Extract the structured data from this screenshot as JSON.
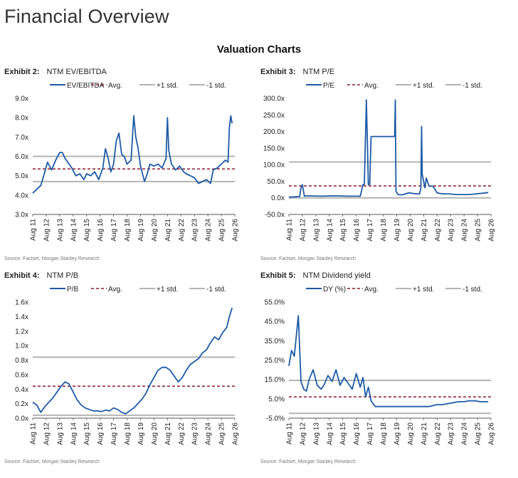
{
  "page": {
    "title": "Financial Overview",
    "section_title": "Valuation Charts"
  },
  "colors": {
    "series": "#1f5aa6",
    "avg": "#8b1a2b",
    "std": "#b4b4b4",
    "axis": "#555555"
  },
  "chart_data": [
    {
      "type": "line",
      "exhibit_label": "Exhibit 2:",
      "exhibit_title": "NTM EV/EBITDA",
      "source": "Source: Factset, Morgan Stanley Research",
      "legend": [
        "EV/EBITDA",
        "Avg.",
        "+1 std.",
        "-1 std."
      ],
      "xlabels": [
        "Aug 11",
        "Aug 12",
        "Aug 13",
        "Aug 14",
        "Aug 15",
        "Aug 16",
        "Aug 17",
        "Aug 18",
        "Aug 19",
        "Aug 20",
        "Aug 21",
        "Aug 22",
        "Aug 23",
        "Aug 24",
        "Aug 25",
        "Aug 26"
      ],
      "ylabels": [
        "9.0x",
        "8.0x",
        "7.0x",
        "6.0x",
        "5.0x",
        "4.0x",
        "3.0x"
      ],
      "ylim": [
        3,
        9
      ],
      "xlim": [
        2011.6,
        2026.6
      ],
      "avg": 5.35,
      "plus1": 6.0,
      "minus1": 4.7,
      "series": [
        {
          "name": "EV/EBITDA",
          "x": [
            2011.6,
            2011.9,
            2012.2,
            2012.5,
            2012.7,
            2013.0,
            2013.3,
            2013.6,
            2013.8,
            2014.0,
            2014.3,
            2014.5,
            2014.8,
            2015.1,
            2015.4,
            2015.6,
            2015.9,
            2016.2,
            2016.5,
            2016.8,
            2017.0,
            2017.2,
            2017.4,
            2017.6,
            2017.8,
            2018.0,
            2018.2,
            2018.4,
            2018.6,
            2018.9,
            2019.1,
            2019.25,
            2019.4,
            2019.6,
            2019.9,
            2020.1,
            2020.3,
            2020.6,
            2020.9,
            2021.2,
            2021.5,
            2021.6,
            2021.7,
            2021.9,
            2022.2,
            2022.5,
            2022.8,
            2023.0,
            2023.3,
            2023.6,
            2023.9,
            2024.2,
            2024.5,
            2024.8,
            2025.0,
            2025.3,
            2025.6,
            2025.9,
            2026.1,
            2026.2,
            2026.3,
            2026.4
          ],
          "y": [
            4.1,
            4.3,
            4.5,
            5.2,
            5.7,
            5.3,
            5.8,
            6.2,
            6.2,
            5.9,
            5.6,
            5.4,
            5.0,
            5.1,
            4.8,
            5.1,
            5.0,
            5.2,
            4.8,
            5.4,
            6.4,
            5.9,
            5.2,
            5.6,
            6.8,
            7.2,
            6.1,
            6.0,
            5.6,
            5.8,
            8.1,
            7.0,
            6.5,
            5.5,
            4.7,
            5.1,
            5.6,
            5.5,
            5.6,
            5.4,
            5.9,
            8.0,
            6.3,
            5.6,
            5.3,
            5.5,
            5.2,
            5.1,
            5.0,
            4.9,
            4.6,
            4.7,
            4.8,
            4.6,
            5.3,
            5.4,
            5.6,
            5.8,
            5.7,
            7.5,
            8.1,
            7.7
          ]
        }
      ]
    },
    {
      "type": "line",
      "exhibit_label": "Exhibit 3:",
      "exhibit_title": "NTM P/E",
      "source": "Source: Factset, Morgan Stanley Research",
      "legend": [
        "P/E",
        "Avg.",
        "+1 std.",
        "-1 std."
      ],
      "xlabels": [
        "Aug 11",
        "Aug 12",
        "Aug 13",
        "Aug 14",
        "Aug 15",
        "Aug 16",
        "Aug 17",
        "Aug 18",
        "Aug 19",
        "Aug 20",
        "Aug 21",
        "Aug 22",
        "Aug 23",
        "Aug 24",
        "Aug 25",
        "Aug 26"
      ],
      "ylabels": [
        "300.0x",
        "250.0x",
        "200.0x",
        "150.0x",
        "100.0x",
        "50.0x",
        "0.0x",
        "-50.0x"
      ],
      "ylim": [
        -50,
        300
      ],
      "xlim": [
        2011.6,
        2026.6
      ],
      "avg": 36,
      "plus1": 108,
      "minus1": 0,
      "series": [
        {
          "name": "P/E",
          "x": [
            2011.6,
            2012.0,
            2012.4,
            2012.5,
            2012.6,
            2012.75,
            2013.0,
            2014.0,
            2015.0,
            2016.0,
            2016.9,
            2017.1,
            2017.2,
            2017.35,
            2017.5,
            2017.6,
            2017.7,
            2017.9,
            2018.5,
            2019.0,
            2019.45,
            2019.5,
            2019.55,
            2019.7,
            2020.0,
            2020.5,
            2021.0,
            2021.3,
            2021.4,
            2021.45,
            2021.5,
            2021.7,
            2021.8,
            2022.0,
            2022.3,
            2022.6,
            2023.0,
            2023.5,
            2024.0,
            2024.5,
            2025.0,
            2025.5,
            2026.0,
            2026.4
          ],
          "y": [
            2,
            3,
            4,
            30,
            40,
            5,
            6,
            5,
            6,
            5,
            5,
            40,
            40,
            295,
            40,
            40,
            185,
            185,
            185,
            185,
            185,
            295,
            20,
            10,
            9,
            15,
            12,
            12,
            30,
            215,
            70,
            30,
            60,
            35,
            35,
            15,
            12,
            12,
            10,
            10,
            10,
            12,
            14,
            16
          ]
        }
      ]
    },
    {
      "type": "line",
      "exhibit_label": "Exhibit 4:",
      "exhibit_title": "NTM P/B",
      "source": "Source: Factset, Morgan Stanley Research",
      "legend": [
        "P/B",
        "Avg.",
        "+1 std.",
        "-1 std."
      ],
      "xlabels": [
        "Aug 11",
        "Aug 12",
        "Aug 13",
        "Aug 14",
        "Aug 15",
        "Aug 16",
        "Aug 17",
        "Aug 18",
        "Aug 19",
        "Aug 20",
        "Aug 21",
        "Aug 22",
        "Aug 23",
        "Aug 24",
        "Aug 25",
        "Aug 26"
      ],
      "ylabels": [
        "1.6x",
        "1.4x",
        "1.2x",
        "1.0x",
        "0.8x",
        "0.6x",
        "0.4x",
        "0.2x",
        "0.0x"
      ],
      "ylim": [
        0,
        1.6
      ],
      "xlim": [
        2011.6,
        2026.6
      ],
      "avg": 0.44,
      "plus1": 0.84,
      "minus1": 0.04,
      "series": [
        {
          "name": "P/B",
          "x": [
            2011.6,
            2011.9,
            2012.2,
            2012.5,
            2012.8,
            2013.1,
            2013.4,
            2013.7,
            2014.0,
            2014.3,
            2014.6,
            2014.9,
            2015.2,
            2015.5,
            2015.8,
            2016.1,
            2016.4,
            2016.7,
            2017.0,
            2017.3,
            2017.6,
            2017.9,
            2018.2,
            2018.5,
            2018.8,
            2019.1,
            2019.4,
            2019.7,
            2020.0,
            2020.3,
            2020.6,
            2020.9,
            2021.2,
            2021.5,
            2021.8,
            2022.1,
            2022.4,
            2022.7,
            2023.0,
            2023.3,
            2023.6,
            2023.9,
            2024.2,
            2024.5,
            2024.8,
            2025.1,
            2025.4,
            2025.7,
            2026.0,
            2026.2,
            2026.4
          ],
          "y": [
            0.22,
            0.18,
            0.08,
            0.16,
            0.22,
            0.28,
            0.36,
            0.44,
            0.5,
            0.47,
            0.36,
            0.25,
            0.18,
            0.14,
            0.12,
            0.1,
            0.1,
            0.09,
            0.11,
            0.1,
            0.14,
            0.12,
            0.08,
            0.06,
            0.1,
            0.14,
            0.2,
            0.26,
            0.34,
            0.46,
            0.56,
            0.66,
            0.7,
            0.7,
            0.66,
            0.58,
            0.5,
            0.56,
            0.66,
            0.74,
            0.78,
            0.82,
            0.9,
            0.94,
            1.04,
            1.12,
            1.08,
            1.18,
            1.25,
            1.4,
            1.52
          ]
        }
      ]
    },
    {
      "type": "line",
      "exhibit_label": "Exhibit 5:",
      "exhibit_title": "NTM Dividend yield",
      "source": "Source: Factset, Morgan Stanley Research",
      "legend": [
        "DY (%)",
        "Avg.",
        "+1 std.",
        "-1 std."
      ],
      "xlabels": [
        "Aug 11",
        "Aug 12",
        "Aug 13",
        "Aug 14",
        "Aug 15",
        "Aug 16",
        "Aug 17",
        "Aug 18",
        "Aug 19",
        "Aug 20",
        "Aug 21",
        "Aug 22",
        "Aug 23",
        "Aug 24",
        "Aug 25",
        "Aug 26"
      ],
      "ylabels": [
        "55.0%",
        "45.0%",
        "35.0%",
        "25.0%",
        "15.0%",
        "5.0%",
        "-5.0%"
      ],
      "ylim": [
        -5,
        55
      ],
      "xlim": [
        2011.6,
        2026.6
      ],
      "avg": 6.0,
      "plus1": 14.5,
      "minus1": -2.5,
      "series": [
        {
          "name": "DY (%)",
          "x": [
            2011.6,
            2011.8,
            2012.0,
            2012.3,
            2012.5,
            2012.7,
            2012.9,
            2013.1,
            2013.4,
            2013.7,
            2014.0,
            2014.2,
            2014.5,
            2014.8,
            2015.1,
            2015.4,
            2015.7,
            2016.0,
            2016.3,
            2016.6,
            2016.9,
            2017.1,
            2017.3,
            2017.5,
            2017.7,
            2018.0,
            2019.0,
            2020.0,
            2021.0,
            2021.5,
            2022.0,
            2022.3,
            2022.6,
            2023.0,
            2023.4,
            2023.8,
            2024.2,
            2024.6,
            2025.0,
            2025.4,
            2025.8,
            2026.2,
            2026.4
          ],
          "y": [
            22,
            30,
            27,
            48,
            14,
            10,
            9,
            15,
            20,
            12,
            10,
            12,
            17,
            14,
            20,
            12,
            16,
            13,
            10,
            18,
            11,
            16,
            6,
            11,
            4,
            1,
            1,
            1,
            1,
            1,
            1,
            1.5,
            2,
            2,
            2.5,
            3,
            3.5,
            3.5,
            4,
            4,
            3.5,
            3.5,
            3.5
          ]
        }
      ]
    }
  ]
}
